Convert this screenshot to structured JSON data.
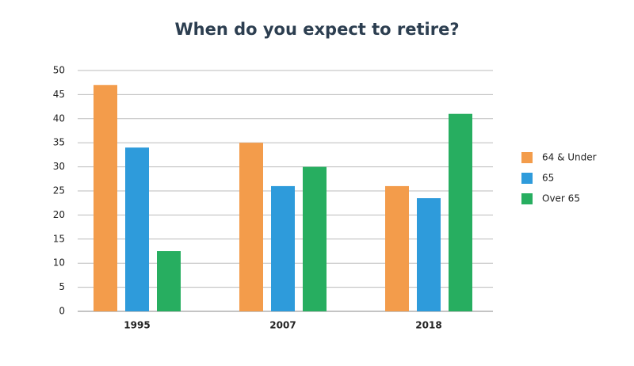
{
  "chart_data": {
    "type": "bar",
    "title": "When do you expect to retire?",
    "categories": [
      "1995",
      "2007",
      "2018"
    ],
    "series": [
      {
        "name": "64 & Under",
        "color": "#f39c4b",
        "values": [
          47,
          35,
          26
        ]
      },
      {
        "name": "65",
        "color": "#2e9bdb",
        "values": [
          34,
          26,
          23.5
        ]
      },
      {
        "name": "Over 65",
        "color": "#27ae60",
        "values": [
          12.5,
          30,
          41
        ]
      }
    ],
    "ylim": [
      0,
      50
    ],
    "yticks": [
      0,
      5,
      10,
      15,
      20,
      25,
      30,
      35,
      40,
      45,
      50
    ],
    "grid": true,
    "legend": "right"
  }
}
